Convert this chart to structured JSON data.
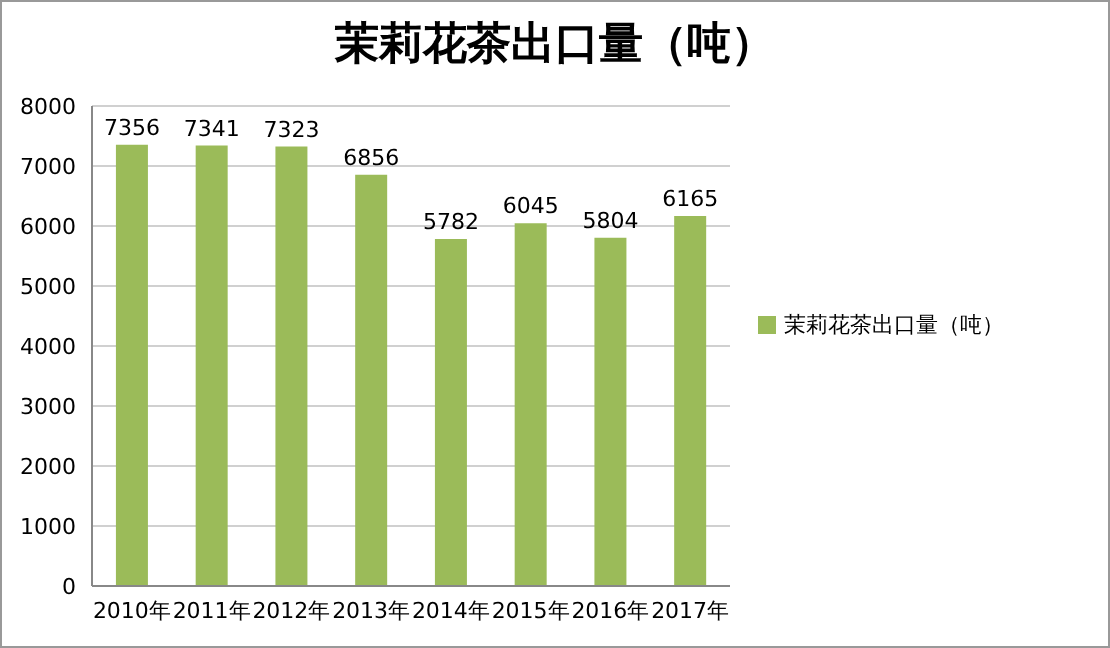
{
  "chart_data": {
    "type": "bar",
    "title": "茉莉花茶出口量（吨）",
    "categories": [
      "2010年",
      "2011年",
      "2012年",
      "2013年",
      "2014年",
      "2015年",
      "2016年",
      "2017年"
    ],
    "series": [
      {
        "name": "茉莉花茶出口量（吨）",
        "color": "#9bbb59",
        "values": [
          7356,
          7341,
          7323,
          6856,
          5782,
          6045,
          5804,
          6165
        ]
      }
    ],
    "ylim": [
      0,
      8000
    ],
    "yticks": [
      0,
      1000,
      2000,
      3000,
      4000,
      5000,
      6000,
      7000,
      8000
    ],
    "grid": "y",
    "legend": "right",
    "data_labels": true
  }
}
